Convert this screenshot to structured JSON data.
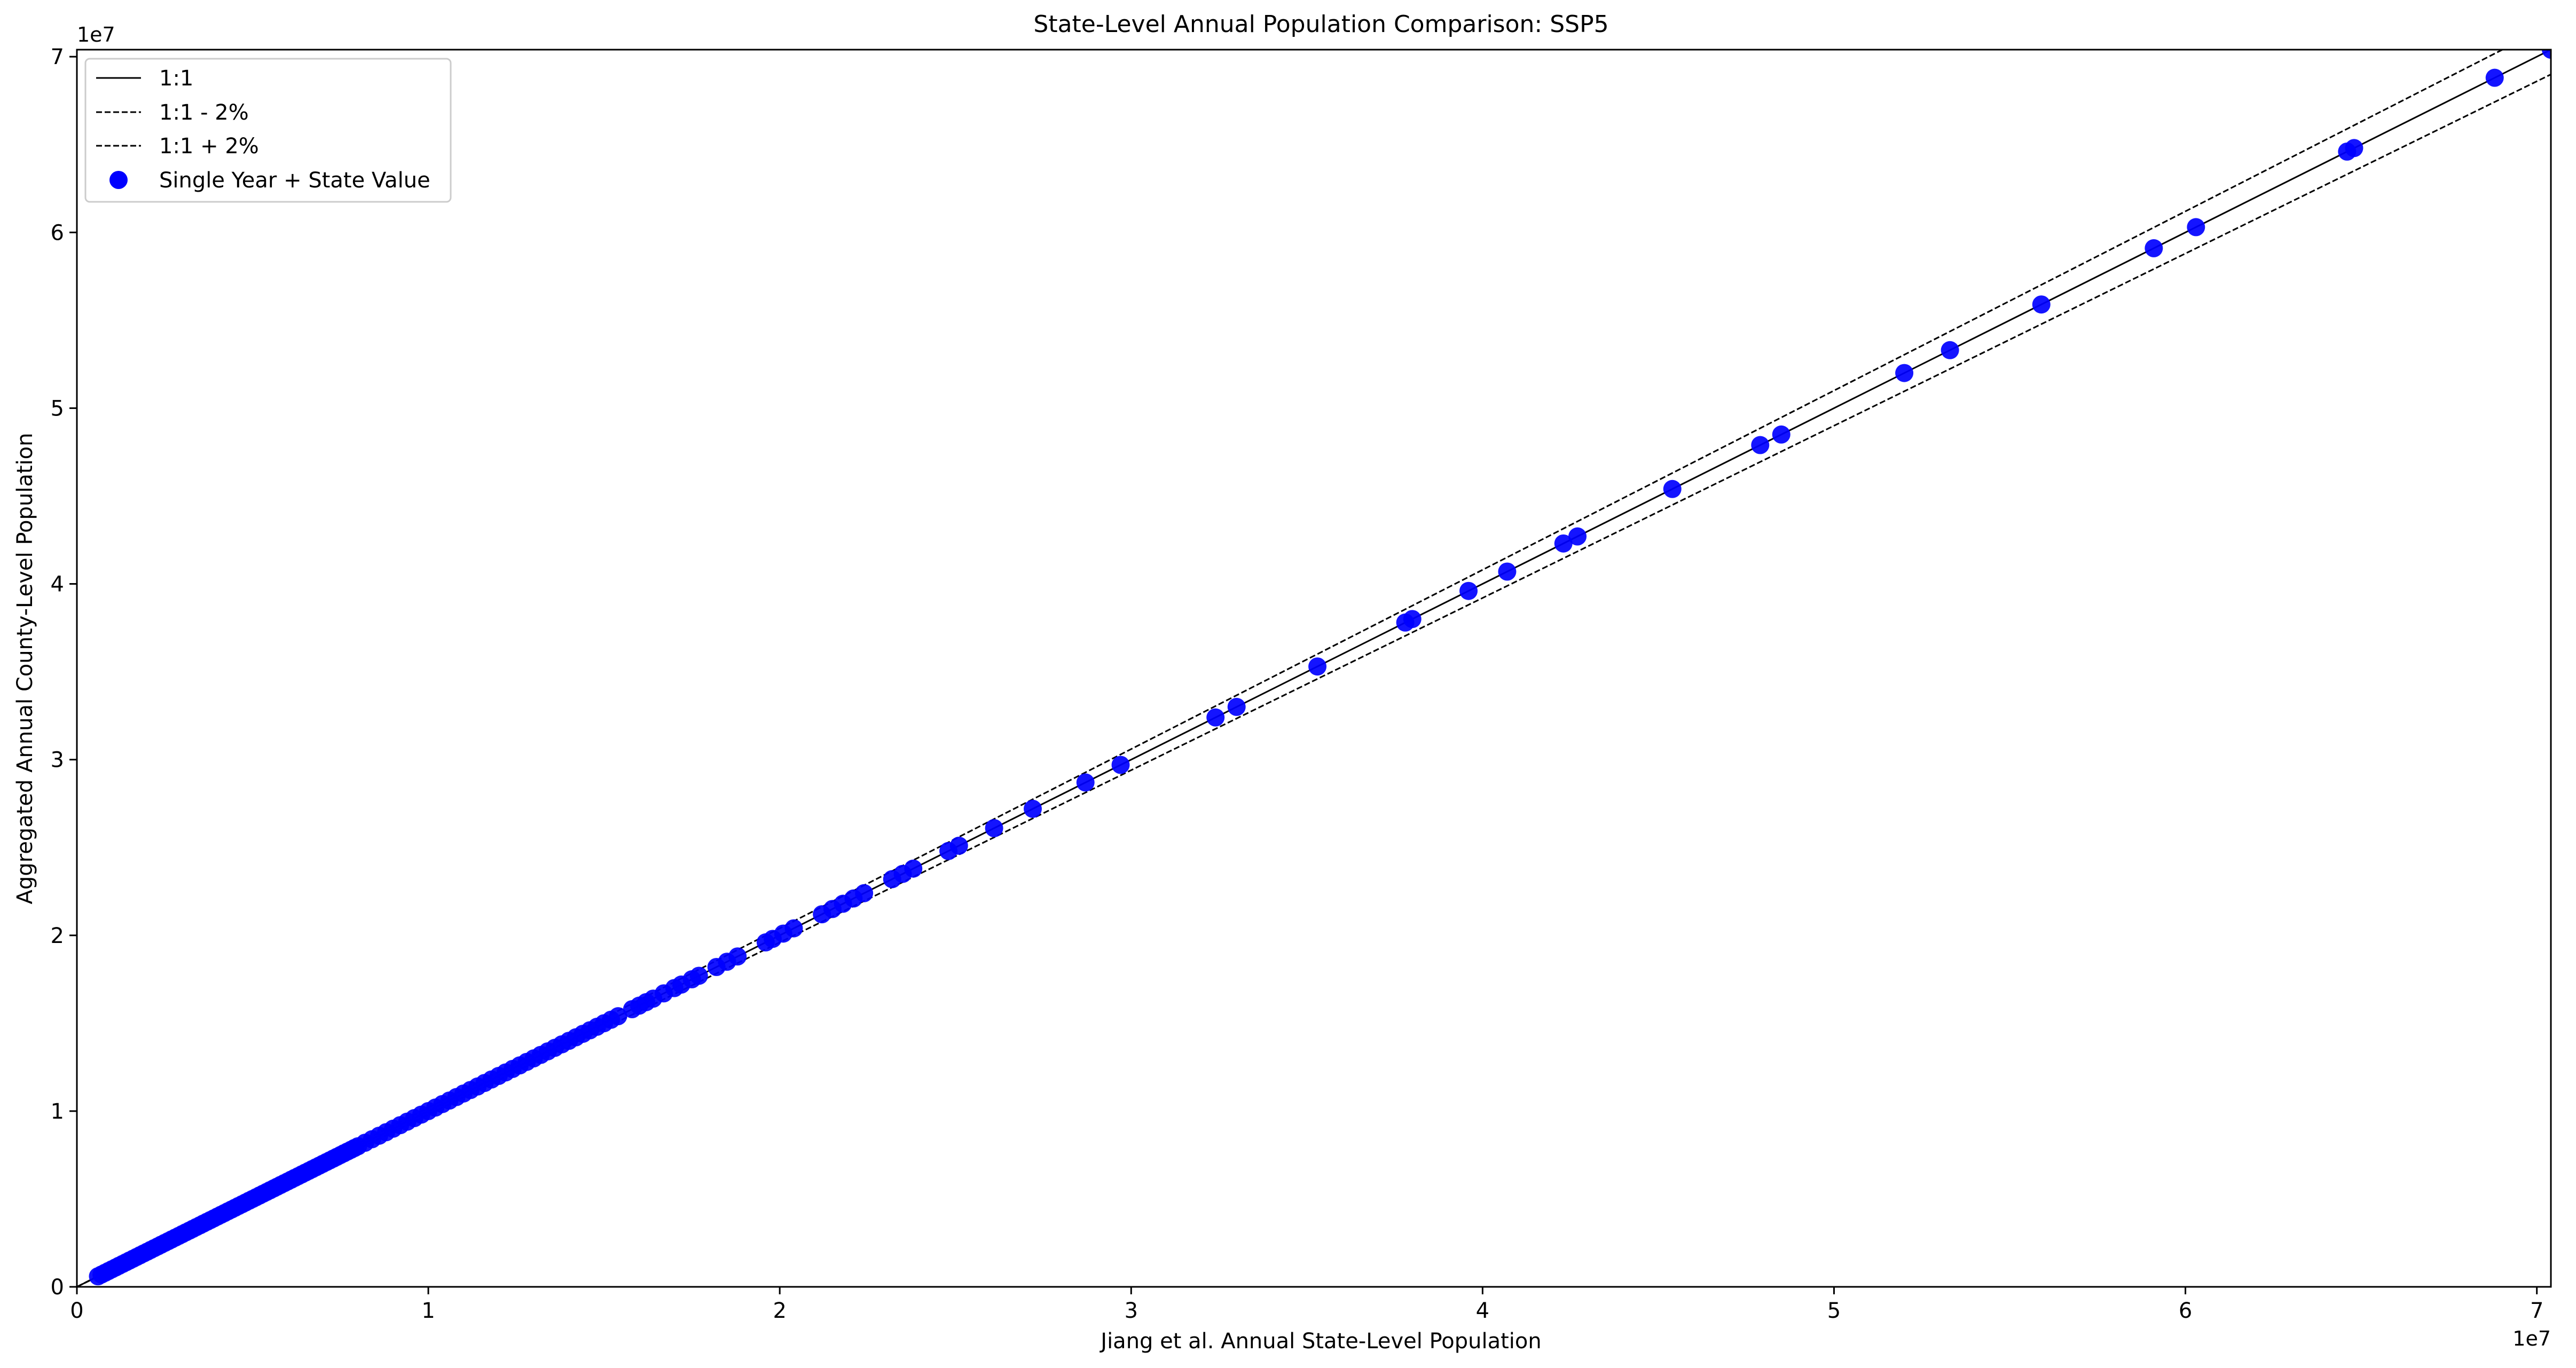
{
  "chart_data": {
    "type": "scatter",
    "title": "State-Level Annual Population Comparison: SSP5",
    "xlabel": "Jiang et al. Annual State-Level Population",
    "ylabel": "Aggregated Annual County-Level Population",
    "xlim": [
      0,
      70400000
    ],
    "ylim": [
      0,
      70400000
    ],
    "x_offset_label": "1e7",
    "y_offset_label": "1e7",
    "x_ticks": [
      0,
      10000000,
      20000000,
      30000000,
      40000000,
      50000000,
      60000000,
      70000000
    ],
    "x_tick_labels": [
      "0",
      "1",
      "2",
      "3",
      "4",
      "5",
      "6",
      "7"
    ],
    "y_ticks": [
      0,
      10000000,
      20000000,
      30000000,
      40000000,
      50000000,
      60000000,
      70000000
    ],
    "y_tick_labels": [
      "0",
      "1",
      "2",
      "3",
      "4",
      "5",
      "6",
      "7"
    ],
    "grid": false,
    "legend_position": "top-left",
    "lines": [
      {
        "name": "1:1",
        "factor": 1.0,
        "style": "solid",
        "color": "#000000"
      },
      {
        "name": "1:1 - 2%",
        "factor": 0.98,
        "style": "dashed",
        "color": "#000000"
      },
      {
        "name": "1:1 + 2%",
        "factor": 1.02,
        "style": "dashed",
        "color": "#000000"
      }
    ],
    "series": [
      {
        "name": "Single Year + State Value",
        "color": "#0000ff",
        "x": [
          600000,
          700000,
          800000,
          900000,
          1000000,
          1100000,
          1200000,
          1300000,
          1400000,
          1500000,
          1600000,
          1700000,
          1800000,
          1900000,
          2000000,
          2100000,
          2200000,
          2300000,
          2400000,
          2500000,
          2600000,
          2700000,
          2800000,
          2900000,
          3000000,
          3100000,
          3200000,
          3300000,
          3400000,
          3500000,
          3600000,
          3700000,
          3800000,
          3900000,
          4000000,
          4100000,
          4200000,
          4300000,
          4400000,
          4500000,
          4600000,
          4700000,
          4800000,
          4900000,
          5000000,
          5100000,
          5200000,
          5300000,
          5400000,
          5500000,
          5600000,
          5700000,
          5800000,
          5900000,
          6000000,
          6100000,
          6200000,
          6300000,
          6400000,
          6500000,
          6600000,
          6700000,
          6800000,
          6900000,
          7000000,
          7100000,
          7200000,
          7300000,
          7400000,
          7500000,
          7600000,
          7700000,
          7800000,
          7900000,
          8000000,
          8200000,
          8400000,
          8600000,
          8800000,
          9000000,
          9200000,
          9400000,
          9600000,
          9800000,
          10000000,
          10200000,
          10400000,
          10600000,
          10800000,
          11000000,
          11200000,
          11400000,
          11600000,
          11800000,
          12000000,
          12200000,
          12400000,
          12600000,
          12800000,
          13000000,
          13200000,
          13400000,
          13600000,
          13800000,
          14000000,
          14200000,
          14400000,
          14600000,
          14800000,
          15000000,
          15200000,
          15400000,
          15800000,
          16000000,
          16200000,
          16400000,
          16700000,
          17000000,
          17200000,
          17500000,
          17700000,
          18200000,
          18500000,
          18800000,
          19600000,
          19800000,
          20100000,
          20400000,
          21200000,
          21500000,
          21800000,
          22100000,
          22400000,
          23200000,
          23500000,
          23800000,
          24800000,
          25100000,
          26100000,
          27200000,
          28700000,
          29700000,
          32400000,
          33000000,
          35300000,
          37800000,
          38000000,
          39600000,
          40700000,
          42300000,
          42700000,
          45400000,
          47900000,
          48500000,
          52000000,
          53300000,
          55900000,
          59100000,
          60300000,
          64600000,
          64800000,
          68800000,
          70400000
        ],
        "y": [
          600000,
          700000,
          800000,
          900000,
          1000000,
          1100000,
          1200000,
          1300000,
          1400000,
          1500000,
          1600000,
          1700000,
          1800000,
          1900000,
          2000000,
          2100000,
          2200000,
          2300000,
          2400000,
          2500000,
          2600000,
          2700000,
          2800000,
          2900000,
          3000000,
          3100000,
          3200000,
          3300000,
          3400000,
          3500000,
          3600000,
          3700000,
          3800000,
          3900000,
          4000000,
          4100000,
          4200000,
          4300000,
          4400000,
          4500000,
          4600000,
          4700000,
          4800000,
          4900000,
          5000000,
          5100000,
          5200000,
          5300000,
          5400000,
          5500000,
          5600000,
          5700000,
          5800000,
          5900000,
          6000000,
          6100000,
          6200000,
          6300000,
          6400000,
          6500000,
          6600000,
          6700000,
          6800000,
          6900000,
          7000000,
          7100000,
          7200000,
          7300000,
          7400000,
          7500000,
          7600000,
          7700000,
          7800000,
          7900000,
          8000000,
          8200000,
          8400000,
          8600000,
          8800000,
          9000000,
          9200000,
          9400000,
          9600000,
          9800000,
          10000000,
          10200000,
          10400000,
          10600000,
          10800000,
          11000000,
          11200000,
          11400000,
          11600000,
          11800000,
          12000000,
          12200000,
          12400000,
          12600000,
          12800000,
          13000000,
          13200000,
          13400000,
          13600000,
          13800000,
          14000000,
          14200000,
          14400000,
          14600000,
          14800000,
          15000000,
          15200000,
          15400000,
          15800000,
          16000000,
          16200000,
          16400000,
          16700000,
          17000000,
          17200000,
          17500000,
          17700000,
          18200000,
          18500000,
          18800000,
          19600000,
          19800000,
          20100000,
          20400000,
          21200000,
          21500000,
          21800000,
          22100000,
          22400000,
          23200000,
          23500000,
          23800000,
          24800000,
          25100000,
          26100000,
          27200000,
          28700000,
          29700000,
          32400000,
          33000000,
          35300000,
          37800000,
          38000000,
          39600000,
          40700000,
          42300000,
          42700000,
          45400000,
          47900000,
          48500000,
          52000000,
          53300000,
          55900000,
          59100000,
          60300000,
          64600000,
          64800000,
          68800000,
          70400000
        ]
      }
    ]
  }
}
